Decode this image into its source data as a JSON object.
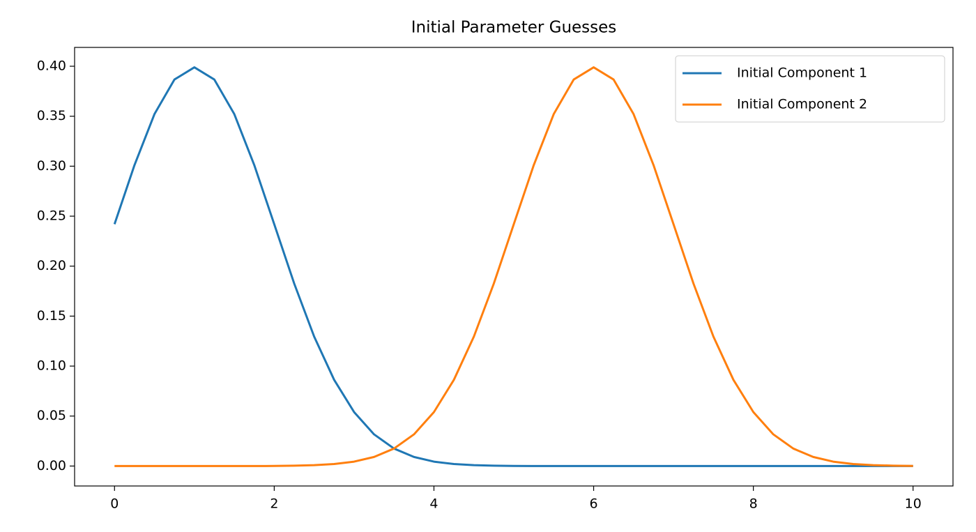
{
  "chart_data": {
    "type": "line",
    "title": "Initial Parameter Guesses",
    "x": [
      0,
      0.25,
      0.5,
      0.75,
      1,
      1.25,
      1.5,
      1.75,
      2,
      2.25,
      2.5,
      2.75,
      3,
      3.25,
      3.5,
      3.75,
      4,
      4.25,
      4.5,
      4.75,
      5,
      5.25,
      5.5,
      5.75,
      6,
      6.25,
      6.5,
      6.75,
      7,
      7.25,
      7.5,
      7.75,
      8,
      8.25,
      8.5,
      8.75,
      9,
      9.25,
      9.5,
      9.75,
      10
    ],
    "series": [
      {
        "name": "Initial Component 1",
        "color": "#1f77b4",
        "values": [
          0.242,
          0.3011,
          0.3521,
          0.3867,
          0.3989,
          0.3867,
          0.3521,
          0.3011,
          0.242,
          0.1826,
          0.1295,
          0.0863,
          0.054,
          0.0317,
          0.0175,
          0.0091,
          0.0044,
          0.002,
          0.0009,
          0.0004,
          0.0001,
          0,
          0,
          0,
          0,
          0,
          0,
          0,
          0,
          0,
          0,
          0,
          0,
          0,
          0,
          0,
          0,
          0,
          0,
          0,
          0
        ]
      },
      {
        "name": "Initial Component 2",
        "color": "#ff7f0e",
        "values": [
          0,
          0,
          0,
          0,
          0,
          0,
          0,
          0,
          0.0001,
          0.0004,
          0.0009,
          0.002,
          0.0044,
          0.0091,
          0.0175,
          0.0317,
          0.054,
          0.0863,
          0.1295,
          0.1826,
          0.242,
          0.3011,
          0.3521,
          0.3867,
          0.3989,
          0.3867,
          0.3521,
          0.3011,
          0.242,
          0.1826,
          0.1295,
          0.0863,
          0.054,
          0.0317,
          0.0175,
          0.0091,
          0.0044,
          0.002,
          0.0009,
          0.0004,
          0.0001
        ]
      }
    ],
    "xlim": [
      -0.5,
      10.5
    ],
    "xticks": [
      0,
      2,
      4,
      6,
      8,
      10
    ],
    "ylim": [
      -0.01995,
      0.41884
    ],
    "yticks": [
      {
        "value": 0,
        "label": "0.00"
      },
      {
        "value": 0.05,
        "label": "0.05"
      },
      {
        "value": 0.1,
        "label": "0.10"
      },
      {
        "value": 0.15,
        "label": "0.15"
      },
      {
        "value": 0.2,
        "label": "0.20"
      },
      {
        "value": 0.25,
        "label": "0.25"
      },
      {
        "value": 0.3,
        "label": "0.30"
      },
      {
        "value": 0.35,
        "label": "0.35"
      },
      {
        "value": 0.4,
        "label": "0.40"
      }
    ],
    "legend": "upper right"
  }
}
